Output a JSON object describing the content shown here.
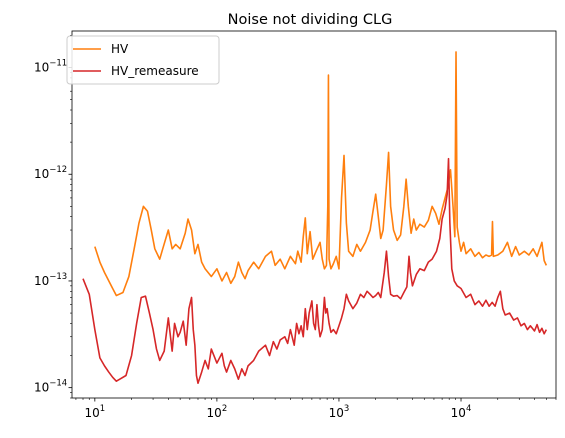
{
  "chart_data": {
    "type": "line",
    "title": "Noise not dividing CLG",
    "xlabel": "",
    "ylabel": "",
    "x_scale": "log",
    "y_scale": "log",
    "xlim": [
      6.5,
      60000
    ],
    "ylim": [
      8e-15,
      2.2e-11
    ],
    "legend_position": "top-left",
    "grid": false,
    "x_ticks": [
      {
        "value": 10,
        "base": "10",
        "exp": "1"
      },
      {
        "value": 100,
        "base": "10",
        "exp": "2"
      },
      {
        "value": 1000,
        "base": "10",
        "exp": "3"
      },
      {
        "value": 10000,
        "base": "10",
        "exp": "4"
      }
    ],
    "y_ticks": [
      {
        "value": 1e-14,
        "base": "10",
        "exp": "−14"
      },
      {
        "value": 1e-13,
        "base": "10",
        "exp": "−13"
      },
      {
        "value": 1e-12,
        "base": "10",
        "exp": "−12"
      },
      {
        "value": 1e-11,
        "base": "10",
        "exp": "−11"
      }
    ],
    "series": [
      {
        "name": "HV",
        "color": "#ff7f0e",
        "points": [
          [
            10,
            2.1e-13
          ],
          [
            11,
            1.5e-13
          ],
          [
            12,
            1.2e-13
          ],
          [
            14,
            8.5e-14
          ],
          [
            15,
            7.3e-14
          ],
          [
            17,
            7.8e-14
          ],
          [
            19,
            1.1e-13
          ],
          [
            21,
            2e-13
          ],
          [
            23,
            3.5e-13
          ],
          [
            25,
            5e-13
          ],
          [
            27,
            4.5e-13
          ],
          [
            29,
            3e-13
          ],
          [
            31,
            2e-13
          ],
          [
            34,
            1.6e-13
          ],
          [
            36,
            2e-13
          ],
          [
            40,
            3e-13
          ],
          [
            43,
            2e-13
          ],
          [
            46,
            2.2e-13
          ],
          [
            50,
            2e-13
          ],
          [
            55,
            2.8e-13
          ],
          [
            58,
            3.8e-13
          ],
          [
            62,
            3e-13
          ],
          [
            66,
            1.8e-13
          ],
          [
            70,
            2.2e-13
          ],
          [
            75,
            1.5e-13
          ],
          [
            80,
            1.3e-13
          ],
          [
            90,
            1.1e-13
          ],
          [
            100,
            1.3e-13
          ],
          [
            110,
            1e-13
          ],
          [
            120,
            1.2e-13
          ],
          [
            130,
            9.5e-14
          ],
          [
            140,
            1.1e-13
          ],
          [
            150,
            1.5e-13
          ],
          [
            160,
            1.2e-13
          ],
          [
            170,
            1.05e-13
          ],
          [
            180,
            1.25e-13
          ],
          [
            200,
            1.5e-13
          ],
          [
            220,
            1.3e-13
          ],
          [
            250,
            1.7e-13
          ],
          [
            280,
            1.9e-13
          ],
          [
            300,
            1.4e-13
          ],
          [
            330,
            1.6e-13
          ],
          [
            360,
            1.3e-13
          ],
          [
            400,
            1.7e-13
          ],
          [
            440,
            1.45e-13
          ],
          [
            460,
            1.9e-13
          ],
          [
            490,
            1.5e-13
          ],
          [
            510,
            2.6e-13
          ],
          [
            530,
            3.9e-13
          ],
          [
            550,
            1.8e-13
          ],
          [
            580,
            2.9e-13
          ],
          [
            610,
            1.6e-13
          ],
          [
            650,
            1.9e-13
          ],
          [
            700,
            2.3e-13
          ],
          [
            730,
            1.6e-13
          ],
          [
            760,
            1.3e-13
          ],
          [
            790,
            1.4e-13
          ],
          [
            810,
            5e-13
          ],
          [
            820,
            8.5e-12
          ],
          [
            830,
            1.6e-13
          ],
          [
            860,
            1.3e-13
          ],
          [
            900,
            1.45e-13
          ],
          [
            950,
            1.7e-13
          ],
          [
            1000,
            1.3e-13
          ],
          [
            1050,
            6e-13
          ],
          [
            1100,
            1.5e-12
          ],
          [
            1150,
            3.5e-13
          ],
          [
            1200,
            1.9e-13
          ],
          [
            1300,
            1.7e-13
          ],
          [
            1400,
            2.2e-13
          ],
          [
            1500,
            1.9e-13
          ],
          [
            1650,
            2.3e-13
          ],
          [
            1800,
            3e-13
          ],
          [
            1900,
            4.5e-13
          ],
          [
            2000,
            6.5e-13
          ],
          [
            2100,
            4e-13
          ],
          [
            2200,
            2.5e-13
          ],
          [
            2300,
            3e-13
          ],
          [
            2450,
            8e-13
          ],
          [
            2550,
            1.6e-12
          ],
          [
            2650,
            5e-13
          ],
          [
            2800,
            3e-13
          ],
          [
            3000,
            2.4e-13
          ],
          [
            3200,
            2.7e-13
          ],
          [
            3400,
            5e-13
          ],
          [
            3550,
            9e-13
          ],
          [
            3700,
            5e-13
          ],
          [
            3900,
            2.8e-13
          ],
          [
            4100,
            3.8e-13
          ],
          [
            4300,
            3e-13
          ],
          [
            4600,
            3.4e-13
          ],
          [
            5000,
            3.2e-13
          ],
          [
            5400,
            3.7e-13
          ],
          [
            5800,
            5e-13
          ],
          [
            6200,
            4.3e-13
          ],
          [
            6600,
            3.4e-13
          ],
          [
            7000,
            4.7e-13
          ],
          [
            7400,
            6e-13
          ],
          [
            7800,
            7.5e-13
          ],
          [
            8200,
            1.1e-12
          ],
          [
            8600,
            5e-13
          ],
          [
            8900,
            2.6e-13
          ],
          [
            9100,
            1.4e-11
          ],
          [
            9300,
            3.2e-13
          ],
          [
            9700,
            2.3e-13
          ],
          [
            10000,
            1.9e-13
          ],
          [
            10500,
            2.3e-13
          ],
          [
            11000,
            1.8e-13
          ],
          [
            12000,
            2e-13
          ],
          [
            13000,
            1.7e-13
          ],
          [
            14000,
            1.85e-13
          ],
          [
            15000,
            1.65e-13
          ],
          [
            16000,
            1.75e-13
          ],
          [
            17000,
            1.7e-13
          ],
          [
            17800,
            1.75e-13
          ],
          [
            18100,
            3.6e-13
          ],
          [
            18400,
            1.7e-13
          ],
          [
            20000,
            1.75e-13
          ],
          [
            22000,
            1.9e-13
          ],
          [
            24000,
            2.3e-13
          ],
          [
            26000,
            1.7e-13
          ],
          [
            28000,
            2.1e-13
          ],
          [
            30000,
            1.75e-13
          ],
          [
            33000,
            1.9e-13
          ],
          [
            36000,
            1.75e-13
          ],
          [
            39000,
            2e-13
          ],
          [
            42000,
            1.7e-13
          ],
          [
            46000,
            2.3e-13
          ],
          [
            48000,
            1.55e-13
          ],
          [
            50000,
            1.4e-13
          ]
        ]
      },
      {
        "name": "HV_remeasure",
        "color": "#d62728",
        "points": [
          [
            8,
            1.05e-13
          ],
          [
            9,
            7.5e-14
          ],
          [
            10,
            3.5e-14
          ],
          [
            11,
            1.9e-14
          ],
          [
            12,
            1.6e-14
          ],
          [
            13,
            1.4e-14
          ],
          [
            14,
            1.25e-14
          ],
          [
            15,
            1.15e-14
          ],
          [
            16,
            1.2e-14
          ],
          [
            18,
            1.3e-14
          ],
          [
            20,
            2e-14
          ],
          [
            22,
            4e-14
          ],
          [
            24,
            7e-14
          ],
          [
            26,
            7.2e-14
          ],
          [
            28,
            5e-14
          ],
          [
            30,
            3.5e-14
          ],
          [
            32,
            2.3e-14
          ],
          [
            34,
            1.8e-14
          ],
          [
            37,
            2.2e-14
          ],
          [
            40,
            4.5e-14
          ],
          [
            43,
            2.2e-14
          ],
          [
            45,
            4e-14
          ],
          [
            48,
            3e-14
          ],
          [
            50,
            3.3e-14
          ],
          [
            53,
            4.2e-14
          ],
          [
            56,
            2.5e-14
          ],
          [
            59,
            5.5e-14
          ],
          [
            62,
            7e-14
          ],
          [
            64,
            3.5e-14
          ],
          [
            66,
            2.5e-14
          ],
          [
            68,
            1.3e-14
          ],
          [
            70,
            1.1e-14
          ],
          [
            75,
            1.4e-14
          ],
          [
            80,
            1.8e-14
          ],
          [
            85,
            1.5e-14
          ],
          [
            90,
            2.3e-14
          ],
          [
            100,
            1.7e-14
          ],
          [
            110,
            2.1e-14
          ],
          [
            115,
            1.6e-14
          ],
          [
            120,
            1.4e-14
          ],
          [
            130,
            1.8e-14
          ],
          [
            140,
            1.5e-14
          ],
          [
            150,
            1.2e-14
          ],
          [
            160,
            1.5e-14
          ],
          [
            170,
            1.3e-14
          ],
          [
            180,
            1.6e-14
          ],
          [
            200,
            1.8e-14
          ],
          [
            220,
            2.2e-14
          ],
          [
            250,
            2.5e-14
          ],
          [
            270,
            2e-14
          ],
          [
            290,
            2.7e-14
          ],
          [
            310,
            2.3e-14
          ],
          [
            330,
            2.8e-14
          ],
          [
            360,
            3e-14
          ],
          [
            380,
            2.6e-14
          ],
          [
            400,
            3.5e-14
          ],
          [
            430,
            2.5e-14
          ],
          [
            450,
            4e-14
          ],
          [
            470,
            3.2e-14
          ],
          [
            490,
            3.8e-14
          ],
          [
            510,
            3e-14
          ],
          [
            530,
            5.5e-14
          ],
          [
            550,
            3.5e-14
          ],
          [
            570,
            5e-14
          ],
          [
            600,
            6.5e-14
          ],
          [
            620,
            4e-14
          ],
          [
            640,
            3.5e-14
          ],
          [
            660,
            6e-14
          ],
          [
            680,
            3.8e-14
          ],
          [
            700,
            3e-14
          ],
          [
            730,
            3.5e-14
          ],
          [
            760,
            7e-14
          ],
          [
            780,
            5e-14
          ],
          [
            800,
            5.5e-14
          ],
          [
            830,
            4e-14
          ],
          [
            860,
            3.3e-14
          ],
          [
            900,
            3.5e-14
          ],
          [
            950,
            3.2e-14
          ],
          [
            1000,
            3.8e-14
          ],
          [
            1050,
            4.5e-14
          ],
          [
            1100,
            5.5e-14
          ],
          [
            1150,
            7.5e-14
          ],
          [
            1200,
            6.5e-14
          ],
          [
            1300,
            5.5e-14
          ],
          [
            1400,
            6.2e-14
          ],
          [
            1500,
            7.5e-14
          ],
          [
            1600,
            7e-14
          ],
          [
            1700,
            8e-14
          ],
          [
            1800,
            7.5e-14
          ],
          [
            1900,
            7e-14
          ],
          [
            2000,
            7.3e-14
          ],
          [
            2100,
            7.8e-14
          ],
          [
            2200,
            7e-14
          ],
          [
            2350,
            1.2e-13
          ],
          [
            2450,
            1.9e-13
          ],
          [
            2550,
            1.1e-13
          ],
          [
            2650,
            7.5e-14
          ],
          [
            2800,
            7.2e-14
          ],
          [
            3000,
            7.3e-14
          ],
          [
            3200,
            6.8e-14
          ],
          [
            3400,
            7.8e-14
          ],
          [
            3600,
            8.8e-14
          ],
          [
            3750,
            1.7e-13
          ],
          [
            3850,
            1.2e-13
          ],
          [
            4000,
            9e-14
          ],
          [
            4300,
            1.15e-13
          ],
          [
            4600,
            1.3e-13
          ],
          [
            5000,
            1.25e-13
          ],
          [
            5400,
            1.5e-13
          ],
          [
            5800,
            1.6e-13
          ],
          [
            6300,
            1.9e-13
          ],
          [
            6700,
            2.5e-13
          ],
          [
            7000,
            3.8e-13
          ],
          [
            7400,
            4.8e-13
          ],
          [
            7700,
            6.5e-13
          ],
          [
            7900,
            1.4e-12
          ],
          [
            8100,
            3.5e-13
          ],
          [
            8400,
            1.3e-13
          ],
          [
            8800,
            1e-13
          ],
          [
            9300,
            9e-14
          ],
          [
            10000,
            8.5e-14
          ],
          [
            11000,
            7e-14
          ],
          [
            12000,
            7.5e-14
          ],
          [
            13000,
            6e-14
          ],
          [
            14000,
            6.5e-14
          ],
          [
            15000,
            5.8e-14
          ],
          [
            16000,
            6.6e-14
          ],
          [
            17000,
            5.8e-14
          ],
          [
            18000,
            6.3e-14
          ],
          [
            19000,
            5.8e-14
          ],
          [
            20000,
            7e-14
          ],
          [
            21000,
            8e-14
          ],
          [
            22000,
            5.5e-14
          ],
          [
            23000,
            4.8e-14
          ],
          [
            25000,
            5e-14
          ],
          [
            27000,
            4.3e-14
          ],
          [
            29000,
            4.5e-14
          ],
          [
            31000,
            3.8e-14
          ],
          [
            33000,
            4e-14
          ],
          [
            35000,
            3.5e-14
          ],
          [
            37000,
            3.8e-14
          ],
          [
            40000,
            3.4e-14
          ],
          [
            42000,
            3.9e-14
          ],
          [
            44000,
            3.3e-14
          ],
          [
            46000,
            3.6e-14
          ],
          [
            48000,
            3.2e-14
          ],
          [
            50000,
            3.5e-14
          ]
        ]
      }
    ]
  }
}
